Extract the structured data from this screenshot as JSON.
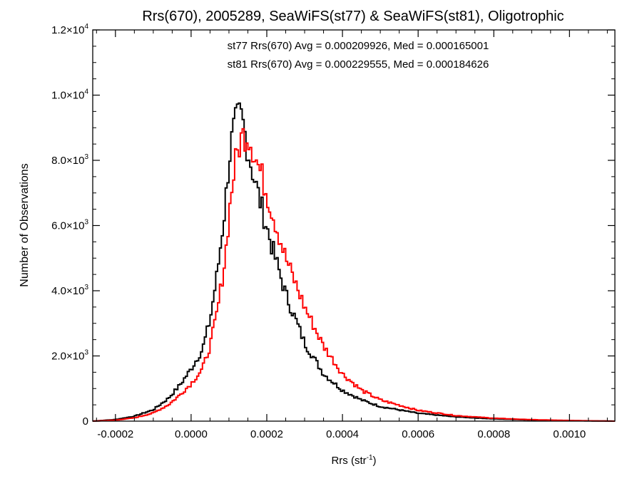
{
  "chart_data": {
    "type": "histogram-step",
    "title": "Rrs(670), 2005289, SeaWiFS(st77) & SeaWiFS(st81), Oligotrophic",
    "xlabel": {
      "main": "Rrs (str",
      "sup": "-1",
      "close": ")"
    },
    "ylabel": "Number of Observations",
    "xlim": [
      -0.00026,
      0.00112
    ],
    "ylim": [
      0,
      12000
    ],
    "x_ticks": [
      {
        "value": -0.0002,
        "label": "-0.0002"
      },
      {
        "value": 0.0,
        "label": "0.0000"
      },
      {
        "value": 0.0002,
        "label": "0.0002"
      },
      {
        "value": 0.0004,
        "label": "0.0004"
      },
      {
        "value": 0.0006,
        "label": "0.0006"
      },
      {
        "value": 0.0008,
        "label": "0.0008"
      },
      {
        "value": 0.001,
        "label": "0.0010"
      }
    ],
    "y_ticks": [
      {
        "value": 0,
        "mant": "0",
        "exp": ""
      },
      {
        "value": 2000,
        "mant": "2.0×10",
        "exp": "3"
      },
      {
        "value": 4000,
        "mant": "4.0×10",
        "exp": "3"
      },
      {
        "value": 6000,
        "mant": "6.0×10",
        "exp": "3"
      },
      {
        "value": 8000,
        "mant": "8.0×10",
        "exp": "3"
      },
      {
        "value": 10000,
        "mant": "1.0×10",
        "exp": "4"
      },
      {
        "value": 12000,
        "mant": "1.2×10",
        "exp": "4"
      }
    ],
    "annotations": [
      {
        "text": "st77 Rrs(670) Avg = 0.000209926, Med = 0.000165001",
        "color": "#000000"
      },
      {
        "text": "st81 Rrs(670) Avg = 0.000229555, Med = 0.000184626",
        "color": "#ff0000"
      }
    ],
    "series": [
      {
        "name": "st77",
        "color": "#000000",
        "x": [
          -0.00026,
          -0.0002,
          -0.00015,
          -0.0001,
          -6e-05,
          -3e-05,
          0.0,
          3e-05,
          5e-05,
          7e-05,
          9e-05,
          0.0001,
          0.00011,
          0.00012,
          0.00013,
          0.00014,
          0.00015,
          0.00017,
          0.00019,
          0.00021,
          0.00023,
          0.00025,
          0.0003,
          0.00035,
          0.0004,
          0.00045,
          0.0005,
          0.0006,
          0.0007,
          0.0008,
          0.0009,
          0.001,
          0.00112
        ],
        "y": [
          0,
          50,
          150,
          350,
          700,
          1100,
          1600,
          2200,
          3100,
          4600,
          6600,
          8000,
          8800,
          9200,
          9400,
          9000,
          8300,
          7300,
          6400,
          5500,
          4700,
          3900,
          2400,
          1450,
          950,
          650,
          450,
          240,
          130,
          70,
          35,
          15,
          0
        ]
      },
      {
        "name": "st81",
        "color": "#ff0000",
        "x": [
          -0.00026,
          -0.0002,
          -0.00015,
          -0.0001,
          -6e-05,
          -3e-05,
          0.0,
          3e-05,
          5e-05,
          7e-05,
          9e-05,
          0.0001,
          0.00011,
          0.00012,
          0.00013,
          0.00014,
          0.00015,
          0.00016,
          0.00017,
          0.00019,
          0.00021,
          0.00023,
          0.00025,
          0.00028,
          0.0003,
          0.00035,
          0.0004,
          0.00045,
          0.0005,
          0.0006,
          0.0007,
          0.0008,
          0.0009,
          0.001,
          0.00112
        ],
        "y": [
          0,
          30,
          100,
          250,
          500,
          800,
          1150,
          1600,
          2300,
          3400,
          5000,
          6300,
          7400,
          8100,
          8600,
          8800,
          8800,
          8500,
          8100,
          7400,
          6600,
          5800,
          5000,
          4100,
          3500,
          2300,
          1450,
          950,
          650,
          330,
          170,
          90,
          45,
          20,
          0
        ]
      }
    ]
  }
}
